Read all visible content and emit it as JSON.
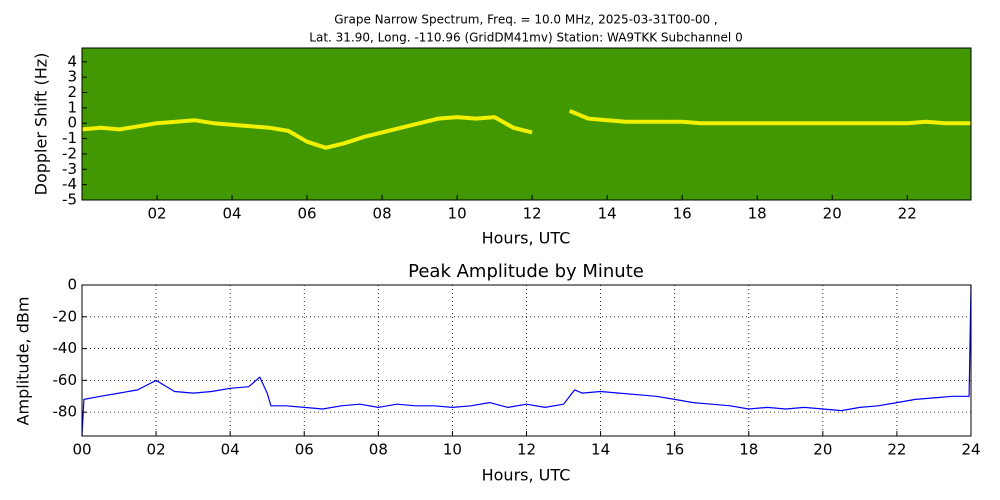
{
  "chart_data": [
    {
      "type": "spectrogram",
      "title": [
        "Grape Narrow Spectrum, Freq. = 10.0 MHz, 2025-03-31T00-00 ,",
        "Lat.  31.90, Long. -110.96 (GridDM41mv) Station: WA9TKK Subchannel 0"
      ],
      "xlabel": "Hours, UTC",
      "ylabel": "Doppler Shift (Hz)",
      "xlim": [
        0,
        23.7
      ],
      "ylim": [
        -5,
        4.9
      ],
      "xticks": [
        {
          "value": 2,
          "label": "02"
        },
        {
          "value": 4,
          "label": "04"
        },
        {
          "value": 6,
          "label": "06"
        },
        {
          "value": 8,
          "label": "08"
        },
        10,
        12,
        14,
        16,
        18,
        20,
        22
      ],
      "yticks": [
        -5,
        -4,
        -3,
        -2,
        -1,
        0,
        1,
        2,
        3,
        4
      ],
      "background": "#3c9600",
      "trace": {
        "color": "#f0f000",
        "x": [
          0,
          0.5,
          1,
          1.5,
          2,
          2.5,
          3,
          3.5,
          4,
          4.5,
          5,
          5.5,
          6,
          6.5,
          7,
          7.5,
          8,
          8.5,
          9,
          9.5,
          10,
          10.5,
          11,
          11.5,
          12,
          12.5,
          13,
          13.5,
          14,
          14.5,
          15,
          15.5,
          16,
          16.5,
          17,
          17.5,
          18,
          18.5,
          19,
          19.5,
          20,
          20.5,
          21,
          21.5,
          22,
          22.5,
          23,
          23.7
        ],
        "values": [
          -0.4,
          -0.3,
          -0.4,
          -0.2,
          0,
          0.1,
          0.2,
          0,
          -0.1,
          -0.2,
          -0.3,
          -0.5,
          -1.2,
          -1.6,
          -1.3,
          -0.9,
          -0.6,
          -0.3,
          0,
          0.3,
          0.4,
          0.3,
          0.4,
          -0.3,
          -0.6,
          null,
          0.8,
          0.3,
          0.2,
          0.1,
          0.1,
          0.1,
          0.1,
          0,
          0,
          0,
          0,
          0,
          0,
          0,
          0,
          0,
          0,
          0,
          0,
          0.1,
          0,
          0
        ]
      }
    },
    {
      "type": "line",
      "title": "Peak Amplitude by Minute",
      "xlabel": "Hours, UTC",
      "ylabel": "Amplitude, dBm",
      "xlim": [
        0,
        24
      ],
      "ylim": [
        -95,
        0
      ],
      "grid": true,
      "xticks": [
        {
          "value": 0,
          "label": "00"
        },
        {
          "value": 2,
          "label": "02"
        },
        {
          "value": 4,
          "label": "04"
        },
        {
          "value": 6,
          "label": "06"
        },
        {
          "value": 8,
          "label": "08"
        },
        10,
        12,
        14,
        16,
        18,
        20,
        22,
        24
      ],
      "yticks": [
        0,
        -20,
        -40,
        -60,
        -80
      ],
      "series": [
        {
          "color": "#0000ff",
          "x": [
            0,
            0.05,
            0.5,
            1,
            1.5,
            2,
            2.5,
            3,
            3.5,
            4,
            4.5,
            4.8,
            5,
            5.1,
            5.5,
            6,
            6.5,
            7,
            7.5,
            8,
            8.5,
            9,
            9.5,
            10,
            10.5,
            11,
            11.5,
            12,
            12.5,
            13,
            13.3,
            13.5,
            14,
            14.5,
            15,
            15.5,
            16,
            16.5,
            17,
            17.5,
            18,
            18.5,
            19,
            19.5,
            20,
            20.5,
            21,
            21.5,
            22,
            22.5,
            23,
            23.5,
            23.95,
            24
          ],
          "values": [
            -95,
            -72,
            -70,
            -68,
            -66,
            -60,
            -67,
            -68,
            -67,
            -65,
            -64,
            -58,
            -68,
            -76,
            -76,
            -77,
            -78,
            -76,
            -75,
            -77,
            -75,
            -76,
            -76,
            -77,
            -76,
            -74,
            -77,
            -75,
            -77,
            -75,
            -66,
            -68,
            -67,
            -68,
            -69,
            -70,
            -72,
            -74,
            -75,
            -76,
            -78,
            -77,
            -78,
            -77,
            -78,
            -79,
            -77,
            -76,
            -74,
            -72,
            -71,
            -70,
            -70,
            0
          ]
        }
      ]
    }
  ]
}
